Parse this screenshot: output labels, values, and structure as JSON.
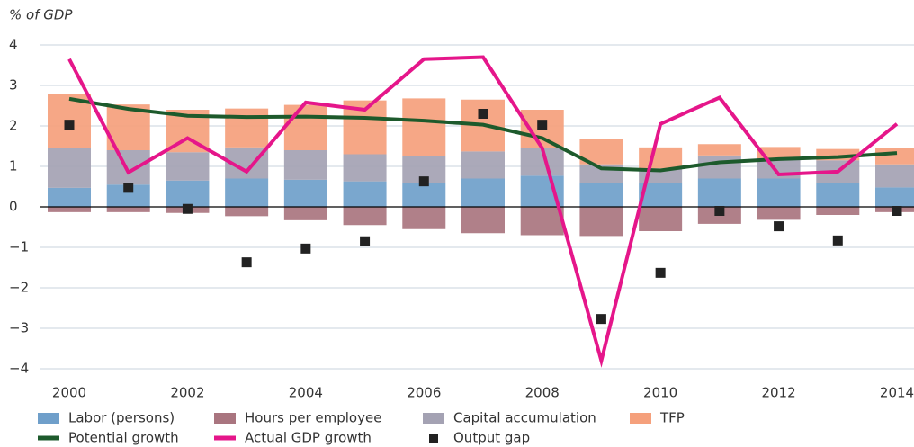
{
  "chart_data": {
    "type": "bar",
    "y_label": "% of GDP",
    "categories": [
      "2000",
      null,
      "2002",
      null,
      "2004",
      null,
      "2006",
      null,
      "2008",
      null,
      "2010",
      null,
      "2012",
      null,
      "2014"
    ],
    "ylim": [
      -4,
      4
    ],
    "yticks": [
      {
        "value": -4,
        "label": "−4"
      },
      {
        "value": -3,
        "label": "−3"
      },
      {
        "value": -2,
        "label": "−2"
      },
      {
        "value": -1,
        "label": "−1"
      },
      0,
      1,
      2,
      3,
      4
    ],
    "grid": true,
    "stacked": true,
    "series": [
      {
        "name": "Labor (persons)",
        "type": "bar",
        "color": "#6f9fca",
        "values": [
          0.47,
          0.55,
          0.65,
          0.7,
          0.67,
          0.63,
          0.6,
          0.7,
          0.77,
          0.6,
          0.6,
          0.7,
          0.7,
          0.58,
          0.48
        ]
      },
      {
        "name": "Hours per employee",
        "type": "bar",
        "color": "#a9757f",
        "values": [
          -0.13,
          -0.13,
          -0.15,
          -0.23,
          -0.33,
          -0.45,
          -0.55,
          -0.65,
          -0.7,
          -0.72,
          -0.6,
          -0.42,
          -0.32,
          -0.2,
          -0.13
        ]
      },
      {
        "name": "Capital accumulation",
        "type": "bar",
        "color": "#a4a2b3",
        "values": [
          0.98,
          0.85,
          0.7,
          0.77,
          0.73,
          0.67,
          0.65,
          0.67,
          0.68,
          0.45,
          0.35,
          0.57,
          0.5,
          0.57,
          0.57
        ]
      },
      {
        "name": "TFP",
        "type": "bar",
        "color": "#f5a07c",
        "values": [
          1.33,
          1.13,
          1.05,
          0.96,
          1.12,
          1.33,
          1.43,
          1.28,
          0.95,
          0.63,
          0.52,
          0.28,
          0.28,
          0.28,
          0.4
        ]
      },
      {
        "name": "Potential growth",
        "type": "line",
        "color": "#1d5a2c",
        "values": [
          2.67,
          2.42,
          2.25,
          2.22,
          2.23,
          2.2,
          2.13,
          2.03,
          1.7,
          0.95,
          0.9,
          1.1,
          1.18,
          1.23,
          1.33
        ]
      },
      {
        "name": "Actual GDP growth",
        "type": "line",
        "color": "#e5168a",
        "values": [
          3.65,
          0.85,
          1.7,
          0.87,
          2.58,
          2.4,
          3.65,
          3.7,
          1.45,
          -3.8,
          2.05,
          2.7,
          0.8,
          0.87,
          2.05
        ]
      },
      {
        "name": "Output gap",
        "type": "scatter",
        "color": "#222222",
        "values": [
          2.03,
          0.47,
          -0.05,
          -1.37,
          -1.03,
          -0.85,
          0.63,
          2.3,
          2.03,
          -2.77,
          -1.63,
          -0.1,
          -0.48,
          -0.83,
          -0.1
        ]
      }
    ]
  }
}
